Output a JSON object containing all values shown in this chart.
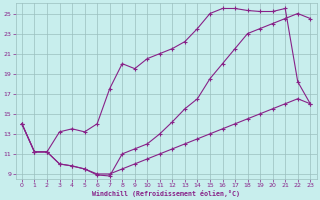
{
  "xlabel": "Windchill (Refroidissement éolien,°C)",
  "bg_color": "#c8eeed",
  "grid_color": "#9bbfbf",
  "line_color": "#882288",
  "xlim": [
    -0.5,
    23.5
  ],
  "ylim": [
    8.5,
    26.0
  ],
  "xticks": [
    0,
    1,
    2,
    3,
    4,
    5,
    6,
    7,
    8,
    9,
    10,
    11,
    12,
    13,
    14,
    15,
    16,
    17,
    18,
    19,
    20,
    21,
    22,
    23
  ],
  "yticks": [
    9,
    11,
    13,
    15,
    17,
    19,
    21,
    23,
    25
  ],
  "line1_x": [
    0,
    1,
    2,
    3,
    4,
    5,
    6,
    7,
    8,
    9,
    10,
    11,
    12,
    13,
    14,
    15,
    16,
    17,
    18,
    19,
    20,
    21,
    22,
    23
  ],
  "line1_y": [
    14,
    11.2,
    11.2,
    10,
    9.8,
    9.5,
    8.9,
    8.8,
    11,
    11.5,
    12,
    13,
    14.2,
    15.5,
    16.5,
    18.5,
    20,
    21.5,
    23,
    23.5,
    24,
    24.5,
    25,
    24.5
  ],
  "line2_x": [
    0,
    1,
    2,
    3,
    4,
    5,
    6,
    7,
    8,
    9,
    10,
    11,
    12,
    13,
    14,
    15,
    16,
    17,
    18,
    19,
    20,
    21,
    22,
    23
  ],
  "line2_y": [
    14,
    11.2,
    11.2,
    13.2,
    13.5,
    13.2,
    14,
    17.5,
    20,
    19.5,
    20.5,
    21,
    21.5,
    22.2,
    23.5,
    25,
    25.5,
    25.5,
    25.3,
    25.2,
    25.2,
    25.5,
    18.2,
    16
  ],
  "line3_x": [
    0,
    1,
    2,
    3,
    4,
    5,
    6,
    7,
    8,
    9,
    10,
    11,
    12,
    13,
    14,
    15,
    16,
    17,
    18,
    19,
    20,
    21,
    22,
    23
  ],
  "line3_y": [
    14,
    11.2,
    11.2,
    10,
    9.8,
    9.5,
    9.0,
    9.0,
    9.5,
    10,
    10.5,
    11,
    11.5,
    12,
    12.5,
    13,
    13.5,
    14,
    14.5,
    15,
    15.5,
    16,
    16.5,
    16
  ]
}
